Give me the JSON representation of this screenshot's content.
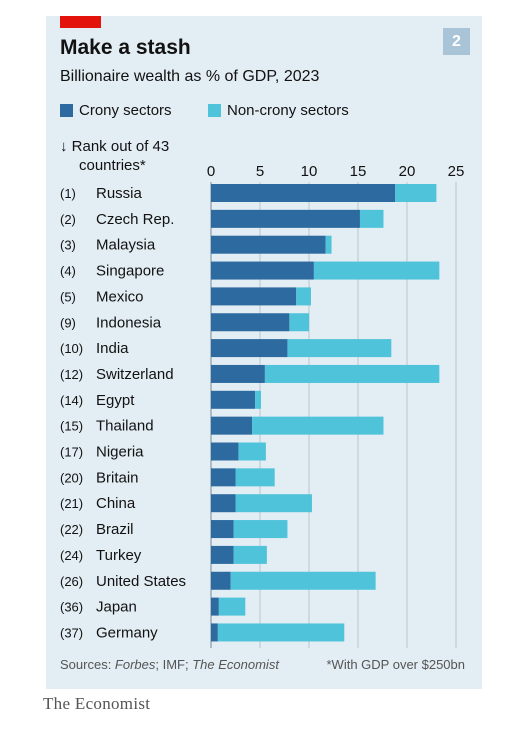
{
  "header": {
    "title": "Make a stash",
    "subtitle": "Billionaire wealth as % of GDP, 2023",
    "badge": "2",
    "accent_color": "#e3120b",
    "badge_color": "#a9c4d6"
  },
  "legend": {
    "items": [
      {
        "label": "Crony sectors",
        "color": "#2d6a9f"
      },
      {
        "label": "Non-crony sectors",
        "color": "#4fc3d9"
      }
    ]
  },
  "rank_label": {
    "line1": "↓ Rank out of 43",
    "line2": "countries*"
  },
  "chart_data": {
    "type": "bar",
    "orientation": "horizontal",
    "stacked": true,
    "axis_position": "top",
    "xlim": [
      0,
      25
    ],
    "xticks": [
      0,
      5,
      10,
      15,
      20,
      25
    ],
    "grid": true,
    "categories": [
      "Russia",
      "Czech Rep.",
      "Malaysia",
      "Singapore",
      "Mexico",
      "Indonesia",
      "India",
      "Switzerland",
      "Egypt",
      "Thailand",
      "Nigeria",
      "Britain",
      "China",
      "Brazil",
      "Turkey",
      "United States",
      "Japan",
      "Germany"
    ],
    "ranks": [
      "(1)",
      "(2)",
      "(3)",
      "(4)",
      "(5)",
      "(9)",
      "(10)",
      "(12)",
      "(14)",
      "(15)",
      "(17)",
      "(20)",
      "(21)",
      "(22)",
      "(24)",
      "(26)",
      "(36)",
      "(37)"
    ],
    "series": [
      {
        "name": "Crony sectors",
        "color": "#2d6a9f",
        "values": [
          18.8,
          15.2,
          11.7,
          10.5,
          8.7,
          8.0,
          7.8,
          5.5,
          4.5,
          4.2,
          2.8,
          2.5,
          2.5,
          2.3,
          2.3,
          2.0,
          0.8,
          0.7
        ]
      },
      {
        "name": "Non-crony sectors",
        "color": "#4fc3d9",
        "values": [
          4.2,
          2.4,
          0.6,
          12.8,
          1.5,
          2.0,
          10.6,
          17.8,
          0.6,
          13.4,
          2.8,
          4.0,
          7.8,
          5.5,
          3.4,
          14.8,
          2.7,
          12.9
        ]
      }
    ]
  },
  "footer": {
    "sources_prefix": "Sources: ",
    "sources_forbes": "Forbes",
    "sources_mid": "; IMF; ",
    "sources_economist": "The Economist",
    "footnote": "*With GDP over $250bn",
    "brand": "The Economist"
  }
}
